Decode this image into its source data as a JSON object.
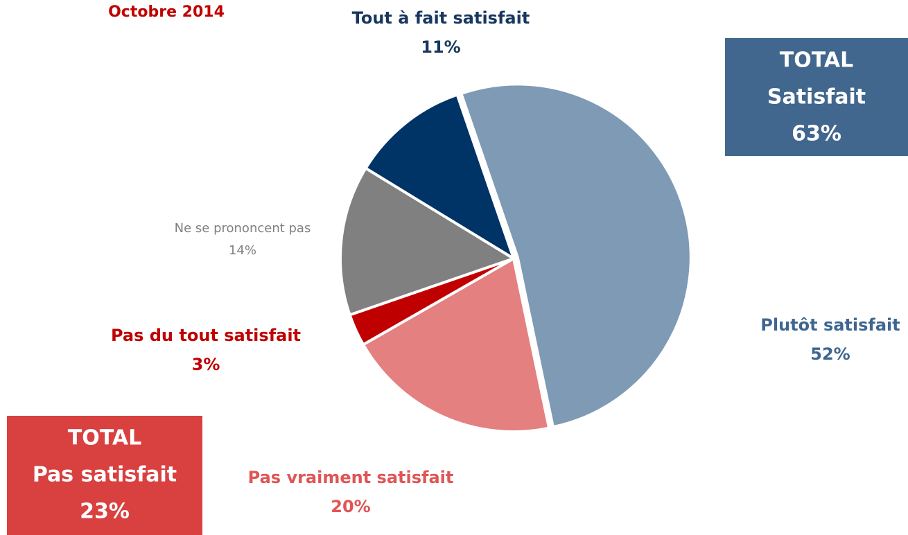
{
  "chart_data": {
    "type": "pie",
    "title": "Octobre 2014",
    "categories": [
      "Plutôt satisfait",
      "Pas vraiment satisfait",
      "Pas du tout satisfait",
      "Ne se prononcent pas",
      "Tout à fait satisfait"
    ],
    "values": [
      52,
      20,
      3,
      14,
      11
    ],
    "value_labels": [
      "52%",
      "20%",
      "3%",
      "14%",
      "11%"
    ],
    "colors": [
      "#7f9ab5",
      "#e48080",
      "#c00000",
      "#808080",
      "#003366"
    ],
    "label_colors": [
      "#3f6690",
      "#e05555",
      "#c00000",
      "#808080",
      "#17375e"
    ],
    "annotations": [
      {
        "lines": [
          "TOTAL",
          "Satisfait",
          "63%"
        ],
        "color": "#41678e"
      },
      {
        "lines": [
          "TOTAL",
          "Pas satisfait",
          "23%"
        ],
        "color": "#d94040"
      }
    ]
  }
}
